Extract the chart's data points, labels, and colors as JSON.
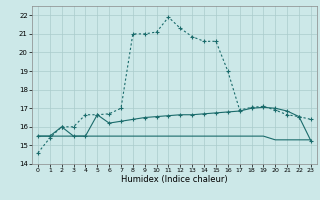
{
  "xlabel": "Humidex (Indice chaleur)",
  "xlim": [
    -0.5,
    23.5
  ],
  "ylim": [
    14,
    22.5
  ],
  "yticks": [
    14,
    15,
    16,
    17,
    18,
    19,
    20,
    21,
    22
  ],
  "xticks": [
    0,
    1,
    2,
    3,
    4,
    5,
    6,
    7,
    8,
    9,
    10,
    11,
    12,
    13,
    14,
    15,
    16,
    17,
    18,
    19,
    20,
    21,
    22,
    23
  ],
  "bg_color": "#cce8e8",
  "grid_color": "#aacccc",
  "line_color": "#1a6b6b",
  "line1_x": [
    0,
    1,
    2,
    3,
    4,
    5,
    6,
    7,
    8,
    9,
    10,
    11,
    12,
    13,
    14,
    15,
    16,
    17,
    18,
    19,
    20,
    21,
    22,
    23
  ],
  "line1_y": [
    14.6,
    15.4,
    16.0,
    16.0,
    16.65,
    16.65,
    16.7,
    17.0,
    21.0,
    21.0,
    21.1,
    21.9,
    21.3,
    20.85,
    20.6,
    20.6,
    19.0,
    16.9,
    17.05,
    17.1,
    16.9,
    16.65,
    16.55,
    16.4
  ],
  "line2_x": [
    0,
    1,
    2,
    3,
    4,
    5,
    6,
    7,
    8,
    9,
    10,
    11,
    12,
    13,
    14,
    15,
    16,
    17,
    18,
    19,
    20,
    21,
    22,
    23
  ],
  "line2_y": [
    15.5,
    15.5,
    16.0,
    15.5,
    15.5,
    16.65,
    16.2,
    16.3,
    16.4,
    16.5,
    16.55,
    16.6,
    16.65,
    16.65,
    16.7,
    16.75,
    16.8,
    16.85,
    17.0,
    17.05,
    17.0,
    16.85,
    16.55,
    15.25
  ],
  "line3_x": [
    0,
    1,
    2,
    3,
    4,
    5,
    6,
    7,
    8,
    9,
    10,
    11,
    12,
    13,
    14,
    15,
    16,
    17,
    18,
    19,
    20,
    21,
    22,
    23
  ],
  "line3_y": [
    15.5,
    15.5,
    15.5,
    15.5,
    15.5,
    15.5,
    15.5,
    15.5,
    15.5,
    15.5,
    15.5,
    15.5,
    15.5,
    15.5,
    15.5,
    15.5,
    15.5,
    15.5,
    15.5,
    15.5,
    15.3,
    15.3,
    15.3,
    15.3
  ]
}
